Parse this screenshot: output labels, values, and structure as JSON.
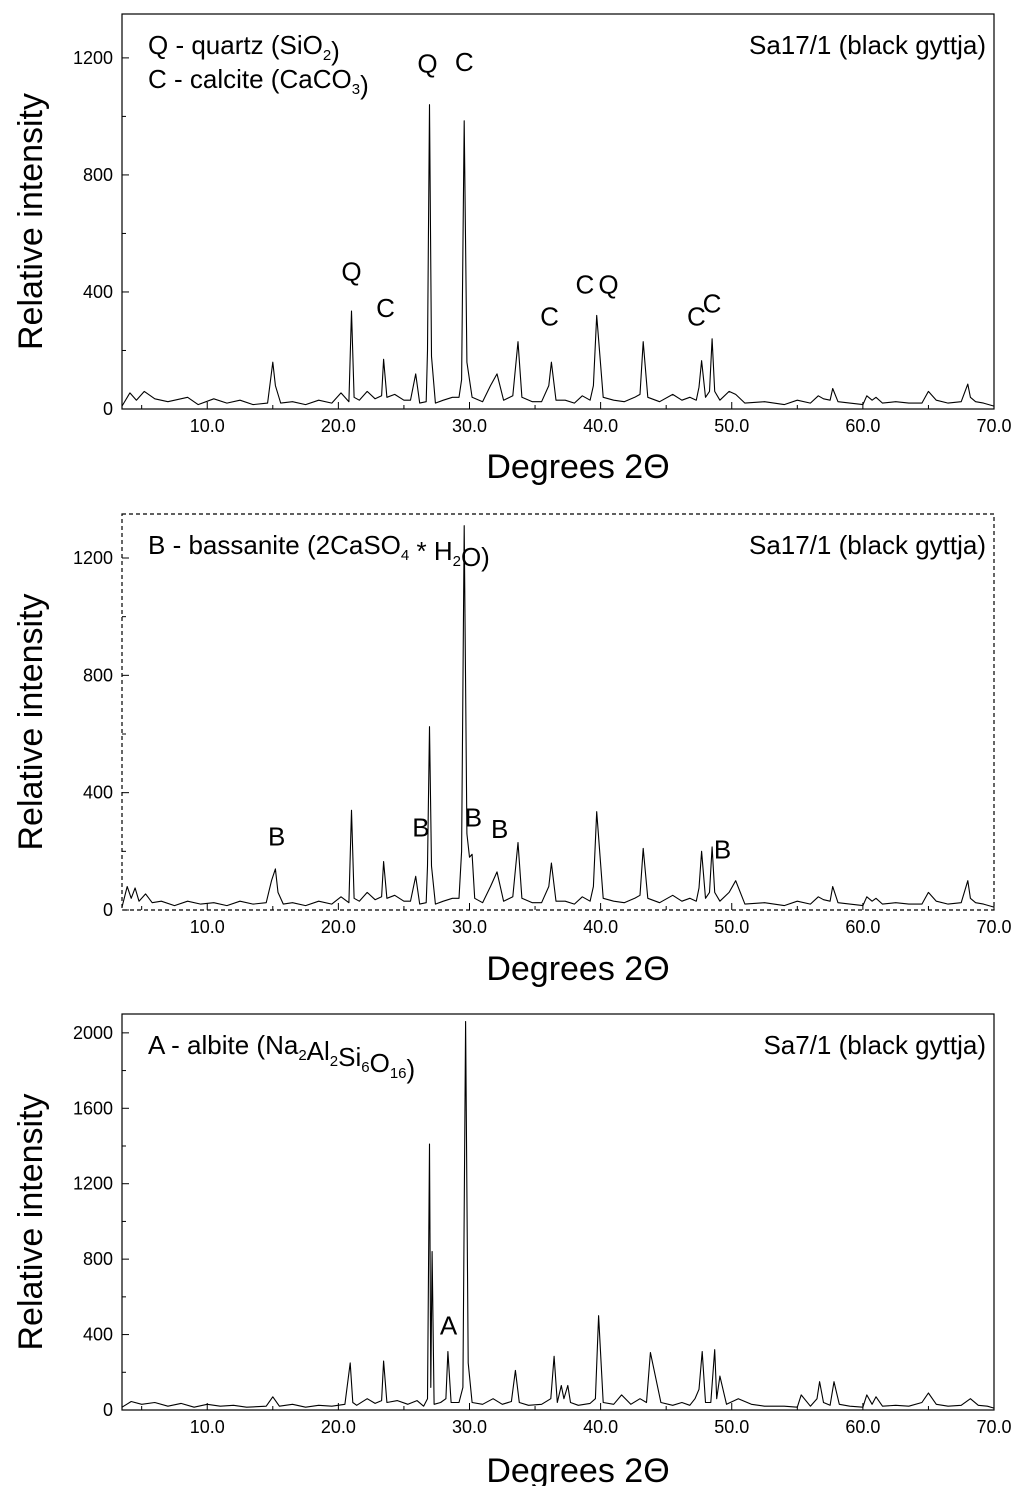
{
  "chart_data": [
    {
      "type": "line",
      "sample": "Sa17/1 (black gyttja)",
      "xlabel": "Degrees 2Θ",
      "ylabel": "Relative intensity",
      "xlim": [
        3.5,
        70
      ],
      "ylim": [
        0,
        1350
      ],
      "xticks": [
        "10.0",
        "20.0",
        "30.0",
        "40.0",
        "50.0",
        "60.0",
        "70.0"
      ],
      "yticks": [
        "0",
        "400",
        "800",
        "1200"
      ],
      "frame": "solid",
      "legend_lines": [
        {
          "code": "Q",
          "text": "quartz",
          "formula": [
            [
              "SiO",
              ""
            ],
            [
              "2",
              "sub"
            ],
            [
              "",
              ""
            ]
          ]
        },
        {
          "code": "C",
          "text": "calcite",
          "formula": [
            [
              "CaCO",
              ""
            ],
            [
              "3",
              "sub"
            ],
            [
              "",
              ""
            ]
          ]
        }
      ],
      "peak_labels": [
        {
          "text": "Q",
          "x": 21.0,
          "y": 440
        },
        {
          "text": "C",
          "x": 23.6,
          "y": 315
        },
        {
          "text": "Q",
          "x": 26.8,
          "y": 1150
        },
        {
          "text": "C",
          "x": 29.6,
          "y": 1155
        },
        {
          "text": "C",
          "x": 36.1,
          "y": 285
        },
        {
          "text": "C",
          "x": 38.8,
          "y": 395
        },
        {
          "text": "Q",
          "x": 40.6,
          "y": 395
        },
        {
          "text": "C",
          "x": 47.3,
          "y": 285
        },
        {
          "text": "C",
          "x": 48.5,
          "y": 330
        }
      ],
      "x": [
        3.5,
        4.1,
        4.6,
        5.2,
        6.0,
        7.0,
        8.5,
        9.3,
        10.5,
        11.5,
        12.5,
        13.5,
        14.6,
        15.0,
        15.2,
        15.6,
        16.5,
        17.5,
        18.5,
        19.5,
        20.2,
        20.8,
        21.0,
        21.2,
        21.6,
        22.2,
        22.8,
        23.3,
        23.45,
        23.7,
        24.3,
        25.0,
        25.5,
        25.9,
        26.2,
        26.7,
        26.8,
        26.95,
        27.1,
        27.4,
        28.0,
        28.7,
        29.2,
        29.4,
        29.6,
        29.8,
        30.2,
        31.0,
        31.6,
        32.1,
        32.6,
        33.3,
        33.7,
        34.0,
        34.8,
        35.5,
        36.05,
        36.25,
        36.6,
        37.3,
        38.0,
        38.6,
        39.2,
        39.45,
        39.7,
        40.2,
        41.0,
        41.8,
        42.6,
        43.0,
        43.25,
        43.6,
        44.5,
        45.5,
        46.2,
        46.8,
        47.3,
        47.5,
        47.7,
        48.0,
        48.3,
        48.5,
        48.7,
        49.1,
        49.8,
        50.3,
        51.0,
        52.5,
        54.0,
        55.0,
        56.0,
        56.6,
        57.0,
        57.5,
        57.7,
        58.1,
        59.0,
        60.0,
        60.3,
        60.7,
        61.0,
        61.5,
        62.5,
        63.5,
        64.5,
        65.0,
        65.6,
        66.5,
        67.5,
        68.0,
        68.2,
        68.6,
        69.2,
        70.0
      ],
      "y": [
        10,
        55,
        30,
        60,
        35,
        25,
        40,
        15,
        35,
        20,
        30,
        15,
        20,
        160,
        80,
        20,
        25,
        15,
        30,
        20,
        55,
        25,
        335,
        40,
        30,
        60,
        35,
        45,
        170,
        40,
        50,
        30,
        30,
        120,
        20,
        25,
        200,
        1040,
        180,
        20,
        30,
        40,
        40,
        100,
        985,
        160,
        40,
        25,
        80,
        120,
        30,
        45,
        230,
        40,
        25,
        25,
        80,
        160,
        30,
        30,
        20,
        45,
        30,
        80,
        320,
        40,
        30,
        25,
        40,
        50,
        230,
        40,
        25,
        50,
        30,
        40,
        30,
        75,
        165,
        40,
        60,
        240,
        60,
        30,
        60,
        50,
        20,
        25,
        15,
        30,
        20,
        45,
        35,
        30,
        70,
        25,
        20,
        15,
        45,
        30,
        40,
        20,
        25,
        20,
        20,
        60,
        30,
        20,
        25,
        85,
        40,
        25,
        20,
        10
      ]
    },
    {
      "type": "line",
      "sample": "Sa17/1 (black gyttja)",
      "xlabel": "Degrees 2Θ",
      "ylabel": "Relative intensity",
      "xlim": [
        3.5,
        70
      ],
      "ylim": [
        0,
        1350
      ],
      "xticks": [
        "10.0",
        "20.0",
        "30.0",
        "40.0",
        "50.0",
        "60.0",
        "70.0"
      ],
      "yticks": [
        "0",
        "400",
        "800",
        "1200"
      ],
      "frame": "dashed",
      "legend_lines": [
        {
          "code": "B",
          "text": "bassanite",
          "formula": [
            [
              "2CaSO",
              ""
            ],
            [
              "4",
              "sub"
            ],
            [
              " * H",
              ""
            ],
            [
              "2",
              "sub"
            ],
            [
              "O",
              ""
            ]
          ]
        }
      ],
      "peak_labels": [
        {
          "text": "B",
          "x": 15.3,
          "y": 220
        },
        {
          "text": "B",
          "x": 26.3,
          "y": 250
        },
        {
          "text": "B",
          "x": 30.3,
          "y": 285
        },
        {
          "text": "B",
          "x": 32.3,
          "y": 245
        },
        {
          "text": "B",
          "x": 49.3,
          "y": 175
        }
      ],
      "x": [
        3.5,
        3.9,
        4.2,
        4.5,
        4.8,
        5.3,
        5.8,
        6.5,
        7.5,
        8.5,
        9.5,
        10.5,
        11.5,
        12.5,
        13.5,
        14.5,
        14.9,
        15.2,
        15.4,
        15.8,
        16.5,
        17.5,
        18.5,
        19.5,
        20.2,
        20.8,
        21.0,
        21.2,
        21.6,
        22.2,
        22.8,
        23.3,
        23.45,
        23.7,
        24.3,
        25.0,
        25.5,
        25.9,
        26.2,
        26.7,
        26.8,
        26.95,
        27.1,
        27.4,
        28.0,
        28.7,
        29.2,
        29.4,
        29.6,
        29.8,
        30.0,
        30.2,
        30.4,
        31.0,
        31.6,
        32.1,
        32.6,
        33.3,
        33.7,
        34.0,
        34.8,
        35.5,
        36.05,
        36.25,
        36.6,
        37.3,
        38.0,
        38.6,
        39.2,
        39.45,
        39.7,
        40.2,
        41.0,
        41.8,
        42.6,
        43.0,
        43.25,
        43.6,
        44.5,
        45.5,
        46.2,
        46.8,
        47.3,
        47.5,
        47.7,
        48.0,
        48.3,
        48.5,
        48.7,
        49.1,
        49.8,
        50.3,
        51.0,
        52.5,
        54.0,
        55.0,
        56.0,
        56.6,
        57.0,
        57.5,
        57.7,
        58.1,
        59.0,
        60.0,
        60.3,
        60.7,
        61.0,
        61.5,
        62.5,
        63.5,
        64.5,
        65.0,
        65.6,
        66.5,
        67.5,
        68.0,
        68.2,
        68.6,
        69.2,
        70.0
      ],
      "y": [
        10,
        80,
        40,
        75,
        30,
        55,
        25,
        30,
        15,
        30,
        20,
        25,
        15,
        30,
        20,
        25,
        100,
        140,
        60,
        20,
        25,
        15,
        30,
        20,
        45,
        25,
        340,
        40,
        30,
        60,
        35,
        45,
        165,
        40,
        50,
        30,
        30,
        115,
        20,
        25,
        150,
        625,
        150,
        20,
        30,
        40,
        40,
        200,
        1310,
        260,
        180,
        190,
        40,
        25,
        80,
        130,
        30,
        45,
        230,
        40,
        25,
        25,
        80,
        160,
        30,
        30,
        20,
        45,
        30,
        80,
        335,
        40,
        30,
        25,
        40,
        50,
        210,
        40,
        25,
        50,
        30,
        40,
        30,
        75,
        200,
        40,
        60,
        215,
        60,
        30,
        60,
        100,
        20,
        25,
        15,
        30,
        20,
        45,
        35,
        30,
        80,
        25,
        20,
        15,
        45,
        30,
        40,
        20,
        25,
        20,
        20,
        60,
        30,
        20,
        25,
        100,
        40,
        25,
        20,
        10
      ]
    },
    {
      "type": "line",
      "sample": "Sa7/1 (black gyttja)",
      "xlabel": "Degrees 2Θ",
      "ylabel": "Relative intensity",
      "xlim": [
        3.5,
        70
      ],
      "ylim": [
        0,
        2100
      ],
      "xticks": [
        "10.0",
        "20.0",
        "30.0",
        "40.0",
        "50.0",
        "60.0",
        "70.0"
      ],
      "yticks": [
        "0",
        "400",
        "800",
        "1200",
        "1600",
        "2000"
      ],
      "frame": "solid",
      "legend_lines": [
        {
          "code": "A",
          "text": "albite",
          "formula": [
            [
              "Na",
              ""
            ],
            [
              "2",
              "sub"
            ],
            [
              "Al",
              ""
            ],
            [
              "2",
              "sub"
            ],
            [
              "Si",
              ""
            ],
            [
              "6",
              "sub"
            ],
            [
              "O",
              ""
            ],
            [
              "16",
              "sub"
            ],
            [
              "",
              ""
            ]
          ]
        }
      ],
      "peak_labels": [
        {
          "text": "A",
          "x": 28.4,
          "y": 400
        }
      ],
      "x": [
        3.5,
        4.2,
        5.0,
        6.0,
        7.0,
        8.0,
        9.0,
        10.0,
        11.0,
        12.0,
        13.0,
        14.5,
        15.0,
        15.5,
        16.5,
        17.5,
        18.5,
        19.5,
        20.5,
        20.9,
        21.1,
        21.4,
        22.2,
        22.8,
        23.3,
        23.45,
        23.7,
        24.5,
        25.3,
        26.0,
        26.5,
        26.8,
        26.95,
        27.05,
        27.15,
        27.3,
        27.8,
        28.2,
        28.35,
        28.6,
        29.2,
        29.5,
        29.7,
        29.9,
        30.2,
        31.0,
        31.8,
        32.5,
        33.2,
        33.5,
        33.8,
        34.5,
        35.5,
        36.2,
        36.45,
        36.7,
        37.0,
        37.2,
        37.5,
        37.7,
        38.3,
        39.2,
        39.6,
        39.85,
        40.2,
        41.0,
        41.6,
        42.3,
        43.0,
        43.5,
        43.8,
        44.6,
        45.5,
        46.2,
        46.8,
        47.2,
        47.5,
        47.75,
        48.0,
        48.4,
        48.7,
        48.85,
        49.1,
        49.6,
        50.5,
        51.5,
        52.5,
        54.0,
        55.0,
        55.3,
        56.0,
        56.5,
        56.7,
        57.0,
        57.5,
        57.8,
        58.2,
        59.0,
        60.0,
        60.3,
        60.7,
        61.0,
        61.5,
        62.5,
        63.5,
        64.5,
        65.0,
        65.6,
        66.5,
        67.5,
        68.2,
        68.8,
        69.5,
        70.0
      ],
      "y": [
        15,
        45,
        30,
        40,
        20,
        35,
        15,
        30,
        20,
        25,
        15,
        20,
        70,
        20,
        30,
        15,
        25,
        20,
        30,
        250,
        40,
        25,
        60,
        35,
        50,
        260,
        40,
        50,
        30,
        50,
        20,
        60,
        1410,
        120,
        840,
        30,
        40,
        60,
        310,
        40,
        40,
        120,
        2060,
        250,
        40,
        30,
        60,
        30,
        45,
        210,
        40,
        25,
        30,
        60,
        285,
        40,
        130,
        60,
        130,
        40,
        25,
        35,
        60,
        500,
        40,
        30,
        80,
        30,
        60,
        40,
        305,
        40,
        25,
        40,
        25,
        60,
        110,
        310,
        40,
        40,
        320,
        60,
        180,
        30,
        60,
        30,
        20,
        20,
        15,
        80,
        20,
        60,
        150,
        40,
        25,
        150,
        30,
        20,
        15,
        80,
        30,
        70,
        20,
        25,
        20,
        40,
        90,
        30,
        20,
        25,
        60,
        25,
        20,
        10
      ]
    }
  ]
}
